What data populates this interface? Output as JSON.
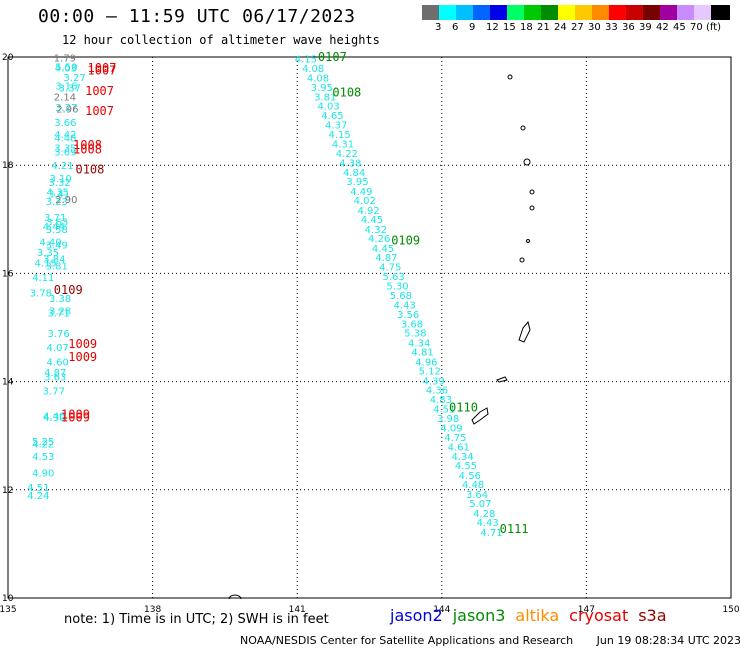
{
  "header": {
    "title": "00:00 – 11:59 UTC 06/17/2023",
    "subtitle": "12 hour collection of altimeter wave heights"
  },
  "color_scale": {
    "unit": "(ft)",
    "steps": [
      {
        "label": "",
        "color": "#6e6e6e"
      },
      {
        "label": "3",
        "color": "#00ffff"
      },
      {
        "label": "6",
        "color": "#00c0ff"
      },
      {
        "label": "9",
        "color": "#0064ff"
      },
      {
        "label": "12",
        "color": "#0000e6"
      },
      {
        "label": "15",
        "color": "#00ff64"
      },
      {
        "label": "18",
        "color": "#00c800"
      },
      {
        "label": "21",
        "color": "#008c00"
      },
      {
        "label": "24",
        "color": "#ffff00"
      },
      {
        "label": "27",
        "color": "#ffc800"
      },
      {
        "label": "30",
        "color": "#ff8c00"
      },
      {
        "label": "33",
        "color": "#ff0000"
      },
      {
        "label": "36",
        "color": "#c80000"
      },
      {
        "label": "39",
        "color": "#780000"
      },
      {
        "label": "42",
        "color": "#a000a0"
      },
      {
        "label": "45",
        "color": "#c88cff"
      },
      {
        "label": "70",
        "color": "#e6c8ff"
      },
      {
        "label": "",
        "color": "#000000"
      }
    ]
  },
  "chart_data": {
    "type": "scatter",
    "xlim": [
      135,
      150
    ],
    "ylim": [
      10,
      20
    ],
    "x_ticks": [
      "135",
      "138",
      "141",
      "144",
      "147",
      "150"
    ],
    "y_ticks": [
      "10",
      "12",
      "14",
      "16",
      "18",
      "20"
    ],
    "grid": true,
    "colors": {
      "cyan": "#19e6e6",
      "green": "#008c00",
      "red": "#e60000",
      "darkred": "#960000",
      "gray": "#7a7a7a"
    },
    "satellites": [
      {
        "name": "jason2",
        "color": "#0000e6"
      },
      {
        "name": "jason3",
        "color": "#008c00"
      },
      {
        "name": "altika",
        "color": "#ff8c00"
      },
      {
        "name": "cryosat",
        "color": "#e60000"
      },
      {
        "name": "s3a",
        "color": "#960000"
      }
    ],
    "track_A": {
      "color": "cyan",
      "points": [
        {
          "lon": 135.98,
          "lat": 19.75,
          "v": "5.50"
        },
        {
          "lon": 135.97,
          "lat": 19.73,
          "v": "4.03"
        },
        {
          "lon": 136.15,
          "lat": 19.56,
          "v": "3.27"
        },
        {
          "lon": 135.98,
          "lat": 19.4,
          "v": "3.16"
        },
        {
          "lon": 136.05,
          "lat": 19.36,
          "v": "3.37"
        },
        {
          "lon": 135.98,
          "lat": 19.0,
          "v": "3.27"
        },
        {
          "lon": 135.96,
          "lat": 18.72,
          "v": "3.66"
        },
        {
          "lon": 135.96,
          "lat": 18.5,
          "v": "4.42"
        },
        {
          "lon": 135.96,
          "lat": 18.44,
          "v": "4.48"
        },
        {
          "lon": 135.96,
          "lat": 18.25,
          "v": "3.35"
        },
        {
          "lon": 135.96,
          "lat": 18.18,
          "v": "3.69"
        },
        {
          "lon": 135.9,
          "lat": 17.93,
          "v": "4.21"
        },
        {
          "lon": 135.86,
          "lat": 17.69,
          "v": "3.10"
        },
        {
          "lon": 135.84,
          "lat": 17.62,
          "v": "3.32"
        },
        {
          "lon": 135.8,
          "lat": 17.44,
          "v": "4.35"
        },
        {
          "lon": 135.83,
          "lat": 17.4,
          "v": "3.41"
        },
        {
          "lon": 135.78,
          "lat": 17.26,
          "v": "3.23"
        },
        {
          "lon": 135.75,
          "lat": 16.97,
          "v": "3.71"
        },
        {
          "lon": 135.79,
          "lat": 16.89,
          "v": "3.63"
        },
        {
          "lon": 135.72,
          "lat": 16.8,
          "v": "4.44"
        },
        {
          "lon": 135.78,
          "lat": 16.75,
          "v": "3.58"
        },
        {
          "lon": 135.65,
          "lat": 16.52,
          "v": "4.40"
        },
        {
          "lon": 135.78,
          "lat": 16.46,
          "v": "3.49"
        },
        {
          "lon": 135.6,
          "lat": 16.32,
          "v": "3.35"
        },
        {
          "lon": 135.73,
          "lat": 16.2,
          "v": "3.84"
        },
        {
          "lon": 135.55,
          "lat": 16.13,
          "v": "4.15"
        },
        {
          "lon": 135.78,
          "lat": 16.07,
          "v": "3.81"
        },
        {
          "lon": 135.5,
          "lat": 15.86,
          "v": "4.11"
        },
        {
          "lon": 135.45,
          "lat": 15.57,
          "v": "3.78"
        },
        {
          "lon": 135.85,
          "lat": 15.47,
          "v": "3.38"
        },
        {
          "lon": 135.85,
          "lat": 15.24,
          "v": "3.28"
        },
        {
          "lon": 135.82,
          "lat": 15.2,
          "v": "3.71"
        },
        {
          "lon": 135.82,
          "lat": 14.82,
          "v": "3.76"
        },
        {
          "lon": 135.8,
          "lat": 14.57,
          "v": "4.07"
        },
        {
          "lon": 135.8,
          "lat": 14.3,
          "v": "4.60"
        },
        {
          "lon": 135.75,
          "lat": 14.1,
          "v": "4.87"
        },
        {
          "lon": 135.75,
          "lat": 14.02,
          "v": "3.63"
        },
        {
          "lon": 135.72,
          "lat": 13.76,
          "v": "3.77"
        },
        {
          "lon": 135.73,
          "lat": 13.3,
          "v": "4.40"
        },
        {
          "lon": 135.73,
          "lat": 13.27,
          "v": "4.30"
        },
        {
          "lon": 135.5,
          "lat": 12.83,
          "v": "5.25"
        },
        {
          "lon": 135.5,
          "lat": 12.78,
          "v": "4.22"
        },
        {
          "lon": 135.5,
          "lat": 12.55,
          "v": "4.53"
        },
        {
          "lon": 135.5,
          "lat": 12.25,
          "v": "4.90"
        },
        {
          "lon": 135.4,
          "lat": 11.98,
          "v": "4.51"
        },
        {
          "lon": 135.4,
          "lat": 11.83,
          "v": "4.24"
        }
      ]
    },
    "track_A_gray": [
      {
        "lon": 135.95,
        "lat": 19.92,
        "v": "1.79"
      },
      {
        "lon": 135.95,
        "lat": 19.2,
        "v": "2.14"
      },
      {
        "lon": 136.0,
        "lat": 18.97,
        "v": "2.96"
      },
      {
        "lon": 135.98,
        "lat": 17.3,
        "v": "2.90"
      }
    ],
    "track_B": {
      "color": "cyan",
      "points": [
        {
          "lon": 140.95,
          "lat": 19.9,
          "v": "4.15"
        },
        {
          "lon": 141.1,
          "lat": 19.72,
          "v": "4.08"
        },
        {
          "lon": 141.2,
          "lat": 19.55,
          "v": "4.08"
        },
        {
          "lon": 141.28,
          "lat": 19.37,
          "v": "3.95"
        },
        {
          "lon": 141.35,
          "lat": 19.2,
          "v": "3.81"
        },
        {
          "lon": 141.42,
          "lat": 19.03,
          "v": "4.03"
        },
        {
          "lon": 141.5,
          "lat": 18.85,
          "v": "4.65"
        },
        {
          "lon": 141.58,
          "lat": 18.68,
          "v": "4.37"
        },
        {
          "lon": 141.65,
          "lat": 18.5,
          "v": "4.15"
        },
        {
          "lon": 141.72,
          "lat": 18.33,
          "v": "4.31"
        },
        {
          "lon": 141.8,
          "lat": 18.15,
          "v": "4.22"
        },
        {
          "lon": 141.87,
          "lat": 17.98,
          "v": "4.38"
        },
        {
          "lon": 141.95,
          "lat": 17.8,
          "v": "4.84"
        },
        {
          "lon": 142.02,
          "lat": 17.63,
          "v": "3.95"
        },
        {
          "lon": 142.1,
          "lat": 17.45,
          "v": "4.49"
        },
        {
          "lon": 142.17,
          "lat": 17.28,
          "v": "4.02"
        },
        {
          "lon": 142.25,
          "lat": 17.1,
          "v": "4.92"
        },
        {
          "lon": 142.32,
          "lat": 16.93,
          "v": "4.45"
        },
        {
          "lon": 142.4,
          "lat": 16.75,
          "v": "4.32"
        },
        {
          "lon": 142.47,
          "lat": 16.58,
          "v": "4.26"
        },
        {
          "lon": 142.55,
          "lat": 16.4,
          "v": "4.45"
        },
        {
          "lon": 142.62,
          "lat": 16.23,
          "v": "4.87"
        },
        {
          "lon": 142.7,
          "lat": 16.05,
          "v": "4.75"
        },
        {
          "lon": 142.77,
          "lat": 15.88,
          "v": "5.63"
        },
        {
          "lon": 142.85,
          "lat": 15.7,
          "v": "5.30"
        },
        {
          "lon": 142.92,
          "lat": 15.53,
          "v": "5.68"
        },
        {
          "lon": 143.0,
          "lat": 15.35,
          "v": "4.43"
        },
        {
          "lon": 143.07,
          "lat": 15.18,
          "v": "3.56"
        },
        {
          "lon": 143.15,
          "lat": 15.0,
          "v": "3.68"
        },
        {
          "lon": 143.22,
          "lat": 14.83,
          "v": "5.38"
        },
        {
          "lon": 143.3,
          "lat": 14.65,
          "v": "4.34"
        },
        {
          "lon": 143.37,
          "lat": 14.48,
          "v": "4.81"
        },
        {
          "lon": 143.45,
          "lat": 14.3,
          "v": "4.96"
        },
        {
          "lon": 143.52,
          "lat": 14.13,
          "v": "5.12"
        },
        {
          "lon": 143.6,
          "lat": 13.95,
          "v": "4.39"
        },
        {
          "lon": 143.67,
          "lat": 13.78,
          "v": "4.36"
        },
        {
          "lon": 143.75,
          "lat": 13.6,
          "v": "4.83"
        },
        {
          "lon": 143.82,
          "lat": 13.43,
          "v": "4.51"
        },
        {
          "lon": 143.9,
          "lat": 13.25,
          "v": "3.98"
        },
        {
          "lon": 143.97,
          "lat": 13.08,
          "v": "4.09"
        },
        {
          "lon": 144.05,
          "lat": 12.9,
          "v": "4.75"
        },
        {
          "lon": 144.12,
          "lat": 12.73,
          "v": "4.61"
        },
        {
          "lon": 144.2,
          "lat": 12.55,
          "v": "4.34"
        },
        {
          "lon": 144.27,
          "lat": 12.38,
          "v": "4.55"
        },
        {
          "lon": 144.35,
          "lat": 12.2,
          "v": "4.56"
        },
        {
          "lon": 144.42,
          "lat": 12.03,
          "v": "4.48"
        },
        {
          "lon": 144.5,
          "lat": 11.85,
          "v": "3.64"
        },
        {
          "lon": 144.57,
          "lat": 11.68,
          "v": "5.07"
        },
        {
          "lon": 144.65,
          "lat": 11.5,
          "v": "4.28"
        },
        {
          "lon": 144.72,
          "lat": 11.33,
          "v": "4.43"
        },
        {
          "lon": 144.8,
          "lat": 11.15,
          "v": "4.71"
        }
      ]
    },
    "time_labels": [
      {
        "lon": 136.65,
        "lat": 19.72,
        "text": "1007",
        "color": "red"
      },
      {
        "lon": 136.65,
        "lat": 19.68,
        "text": "1007",
        "color": "red"
      },
      {
        "lon": 136.6,
        "lat": 19.3,
        "text": "1007",
        "color": "red"
      },
      {
        "lon": 136.6,
        "lat": 18.93,
        "text": "1007",
        "color": "red"
      },
      {
        "lon": 136.35,
        "lat": 18.3,
        "text": "1008",
        "color": "red"
      },
      {
        "lon": 136.35,
        "lat": 18.22,
        "text": "1008",
        "color": "red"
      },
      {
        "lon": 136.4,
        "lat": 17.85,
        "text": "0108",
        "color": "darkred"
      },
      {
        "lon": 135.95,
        "lat": 15.62,
        "text": "0109",
        "color": "darkred"
      },
      {
        "lon": 136.25,
        "lat": 14.62,
        "text": "1009",
        "color": "red"
      },
      {
        "lon": 136.25,
        "lat": 14.38,
        "text": "1009",
        "color": "red"
      },
      {
        "lon": 136.1,
        "lat": 13.32,
        "text": "1009",
        "color": "red"
      },
      {
        "lon": 136.1,
        "lat": 13.26,
        "text": "1009",
        "color": "red"
      },
      {
        "lon": 141.43,
        "lat": 19.93,
        "text": "0107",
        "color": "green"
      },
      {
        "lon": 141.73,
        "lat": 19.27,
        "text": "0108",
        "color": "green"
      },
      {
        "lon": 142.95,
        "lat": 16.53,
        "text": "0109",
        "color": "green"
      },
      {
        "lon": 144.15,
        "lat": 13.45,
        "text": "0110",
        "color": "green"
      },
      {
        "lon": 145.2,
        "lat": 11.2,
        "text": "0111",
        "color": "green"
      }
    ]
  },
  "footer": {
    "note": "note:  1) Time is in UTC;  2) SWH is in feet",
    "credit": "NOAA/NESDIS Center for Satellite Applications and Research",
    "timestamp": "Jun 19 08:28:34 UTC 2023"
  }
}
